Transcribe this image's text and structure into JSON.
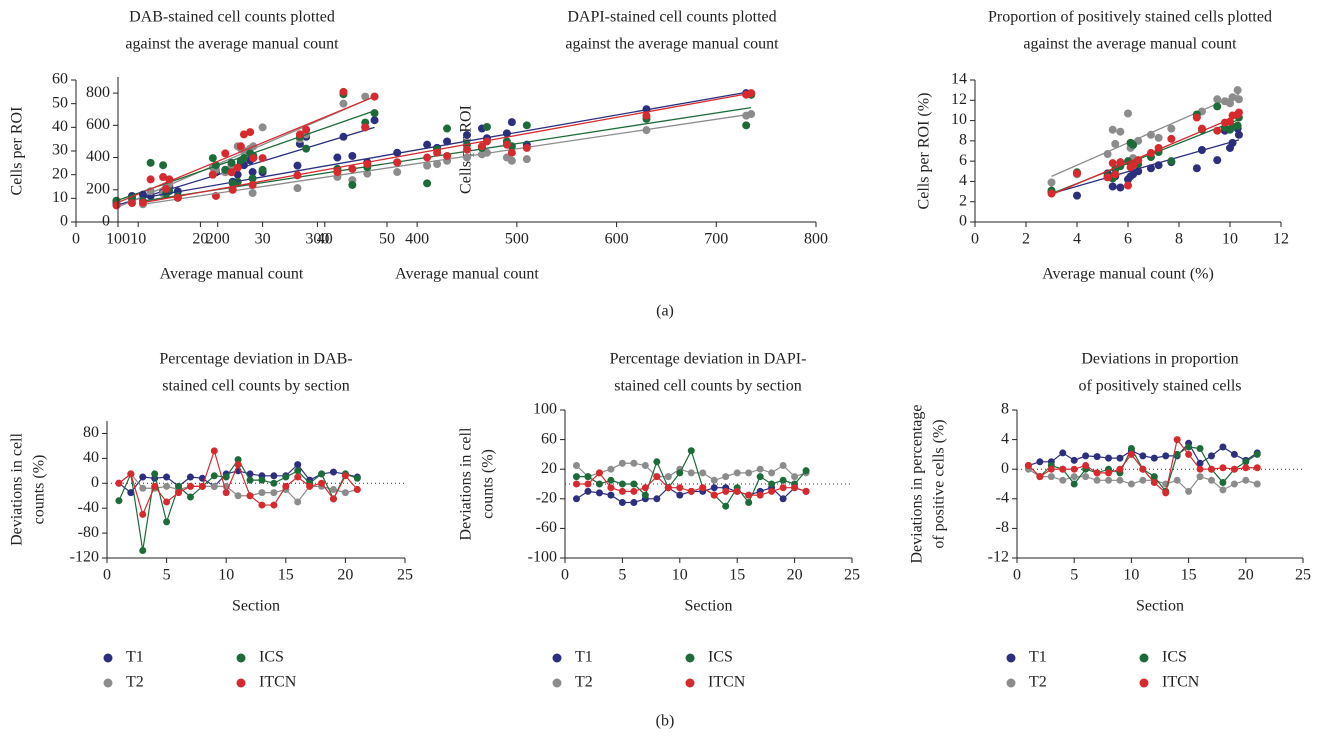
{
  "panel_labels": [
    "(a)",
    "(b)"
  ],
  "chart_data": [
    {
      "type": "scatter",
      "title": [
        "DAB-stained cell counts plotted",
        "against the average manual count"
      ],
      "xlabel": "Average manual count",
      "ylabel": [
        "Cells per ROI"
      ],
      "xlim": [
        0,
        50
      ],
      "xticks": [
        0,
        10,
        20,
        30,
        40,
        50
      ],
      "ylim": [
        0,
        60
      ],
      "yticks": [
        0,
        10,
        20,
        30,
        40,
        50,
        60
      ],
      "x": [
        6.5,
        9,
        12,
        14,
        14.5,
        15,
        22,
        22.5,
        24,
        25,
        26,
        26.5,
        27,
        28,
        28.5,
        30,
        36,
        37,
        43,
        46.5,
        48
      ],
      "trend_x": [
        6.5,
        48
      ],
      "series": [
        {
          "color": "#2b2f7e",
          "values": [
            8,
            11,
            11,
            13,
            14,
            15,
            20,
            21,
            22,
            23,
            20,
            25,
            24,
            26,
            27,
            21,
            33,
            36,
            36,
            40,
            43
          ],
          "trend": [
            7,
            40
          ]
        },
        {
          "color": "#8c8c8c",
          "values": [
            9,
            9,
            13,
            12,
            15,
            16,
            23,
            22,
            21,
            24,
            32,
            31,
            30,
            31,
            32,
            40,
            35,
            37,
            50,
            53,
            53
          ],
          "trend": [
            6,
            53
          ]
        },
        {
          "color": "#1e6b3a",
          "values": [
            9,
            10,
            25,
            24,
            12,
            13,
            27,
            24,
            22,
            25,
            17,
            26,
            27,
            29,
            28,
            22,
            36,
            31,
            54,
            42,
            46
          ],
          "trend": [
            9,
            47
          ]
        },
        {
          "color": "#d62a2f",
          "values": [
            7,
            8,
            18,
            19,
            14,
            18,
            20,
            11,
            29,
            21,
            23,
            32,
            37,
            38,
            27,
            27,
            37,
            39,
            55,
            40,
            53
          ],
          "trend": [
            8,
            53
          ]
        }
      ]
    },
    {
      "type": "scatter",
      "title": [
        "DAPI-stained cell counts plotted",
        "against the average manual count"
      ],
      "xlabel": "Average manual count",
      "ylabel": [
        "Cells per ROI"
      ],
      "xlim": [
        100,
        800
      ],
      "xticks": [
        100,
        200,
        300,
        400,
        500,
        600,
        700,
        800
      ],
      "ylim": [
        0,
        900
      ],
      "yticks": [
        0,
        200,
        400,
        600,
        800
      ],
      "x": [
        125,
        160,
        215,
        235,
        280,
        320,
        335,
        350,
        380,
        410,
        420,
        430,
        450,
        465,
        470,
        490,
        495,
        510,
        630,
        730,
        735
      ],
      "trend_x": [
        125,
        735
      ],
      "series": [
        {
          "color": "#2b2f7e",
          "values": [
            170,
            190,
            250,
            310,
            350,
            400,
            410,
            370,
            430,
            480,
            460,
            500,
            540,
            580,
            520,
            550,
            620,
            480,
            700,
            800,
            790
          ],
          "trend": [
            150,
            810
          ]
        },
        {
          "color": "#8c8c8c",
          "values": [
            110,
            150,
            200,
            180,
            210,
            280,
            260,
            300,
            310,
            350,
            360,
            380,
            400,
            420,
            430,
            400,
            380,
            390,
            570,
            660,
            670
          ],
          "trend": [
            110,
            670
          ]
        },
        {
          "color": "#1e6b3a",
          "values": [
            130,
            160,
            240,
            270,
            290,
            330,
            230,
            340,
            370,
            240,
            450,
            580,
            480,
            460,
            590,
            500,
            470,
            600,
            640,
            600,
            790
          ],
          "trend": [
            130,
            710
          ]
        },
        {
          "color": "#d62a2f",
          "values": [
            120,
            150,
            200,
            230,
            290,
            310,
            330,
            360,
            370,
            400,
            430,
            410,
            450,
            470,
            500,
            480,
            430,
            460,
            660,
            790,
            800
          ],
          "trend": [
            120,
            800
          ]
        }
      ]
    },
    {
      "type": "scatter",
      "title": [
        "Proportion of positively stained cells plotted",
        "against the average manual count"
      ],
      "xlabel": "Average manual count (%)",
      "ylabel": [
        "Cells per ROI (%)"
      ],
      "xlim": [
        0,
        12
      ],
      "xticks": [
        0,
        2,
        4,
        6,
        8,
        10,
        12
      ],
      "ylim": [
        0,
        14
      ],
      "yticks": [
        0,
        2,
        4,
        6,
        8,
        10,
        12,
        14
      ],
      "x": [
        3,
        4,
        5.2,
        5.4,
        5.5,
        5.7,
        6,
        6.1,
        6.2,
        6.4,
        6.9,
        7.2,
        7.7,
        8.7,
        8.9,
        9.5,
        9.8,
        10,
        10.1,
        10.3,
        10.35
      ],
      "trend_x": [
        3,
        10.35
      ],
      "series": [
        {
          "color": "#2b2f7e",
          "values": [
            3,
            2.6,
            4.8,
            3.5,
            4.5,
            3.4,
            4.2,
            4.5,
            4.7,
            5,
            5.3,
            5.6,
            5.9,
            5.3,
            7.1,
            6.1,
            9,
            7.3,
            7.8,
            9.2,
            8.6
          ],
          "trend": [
            2.8,
            8.1
          ]
        },
        {
          "color": "#8c8c8c",
          "values": [
            3.9,
            4.7,
            6.7,
            9.1,
            7.7,
            8.9,
            10.7,
            7.3,
            6.3,
            8,
            8.6,
            8.3,
            9.2,
            10.4,
            10.9,
            12.1,
            11.9,
            11.7,
            12.3,
            13,
            12.1
          ],
          "trend": [
            4.5,
            12.6
          ]
        },
        {
          "color": "#1e6b3a",
          "values": [
            3.1,
            4.9,
            4.5,
            4.3,
            5.2,
            5.5,
            6,
            7.8,
            7.6,
            5.7,
            6.4,
            6.9,
            6,
            10.6,
            9.1,
            11.4,
            9.3,
            9.1,
            9.4,
            9.5,
            10.3
          ],
          "trend": [
            2.8,
            10.1
          ]
        },
        {
          "color": "#d62a2f",
          "values": [
            2.8,
            4.8,
            4.4,
            5.8,
            4.7,
            5.9,
            3.6,
            5.4,
            5.6,
            6.1,
            6.8,
            7.3,
            8.2,
            10.3,
            9.2,
            9,
            9.8,
            9.9,
            10.5,
            10.6,
            10.8
          ],
          "trend": [
            2.7,
            10.5
          ]
        }
      ]
    },
    {
      "type": "line",
      "title": [
        "Percentage deviation in DAB-",
        "stained cell counts by section"
      ],
      "xlabel": "Section",
      "ylabel": [
        "Deviations in cell",
        "counts (%)"
      ],
      "xlim": [
        0,
        25
      ],
      "xticks": [
        0,
        5,
        10,
        15,
        20,
        25
      ],
      "ylim": [
        -120,
        100
      ],
      "yticks": [
        -120,
        -80,
        -40,
        0,
        40,
        80
      ],
      "hline": 0,
      "legend": true,
      "x": [
        1,
        2,
        3,
        4,
        5,
        6,
        7,
        8,
        9,
        10,
        11,
        12,
        13,
        14,
        15,
        16,
        17,
        18,
        19,
        20,
        21
      ],
      "series": [
        {
          "name": "T1",
          "color": "#2b2f7e",
          "values": [
            0,
            -15,
            10,
            8,
            10,
            -5,
            10,
            8,
            -5,
            15,
            20,
            15,
            12,
            12,
            12,
            30,
            5,
            15,
            18,
            15,
            10
          ]
        },
        {
          "name": "T2",
          "color": "#8c8c8c",
          "values": [
            0,
            15,
            -8,
            -8,
            -5,
            -10,
            -5,
            -5,
            -5,
            -5,
            -20,
            -20,
            -15,
            -15,
            -10,
            -30,
            -5,
            -5,
            -10,
            -15,
            -10
          ]
        },
        {
          "name": "ICS",
          "color": "#1e6b3a",
          "values": [
            -28,
            15,
            -108,
            15,
            -62,
            -5,
            -22,
            -5,
            12,
            10,
            38,
            5,
            5,
            0,
            10,
            20,
            0,
            15,
            -25,
            15,
            8
          ]
        },
        {
          "name": "ITCN",
          "color": "#d62a2f",
          "values": [
            0,
            15,
            -50,
            -5,
            -30,
            -15,
            -5,
            -5,
            52,
            -15,
            30,
            -20,
            -35,
            -35,
            -5,
            10,
            -5,
            0,
            -25,
            12,
            -10
          ]
        }
      ]
    },
    {
      "type": "line",
      "title": [
        "Percentage deviation in DAPI-",
        "stained cell counts by section"
      ],
      "xlabel": "Section",
      "ylabel": [
        "Deviations in cell",
        "counts (%)"
      ],
      "xlim": [
        0,
        25
      ],
      "xticks": [
        0,
        5,
        10,
        15,
        20,
        25
      ],
      "ylim": [
        -100,
        100
      ],
      "yticks": [
        -100,
        -60,
        -20,
        20,
        60,
        100
      ],
      "hline": 0,
      "legend": true,
      "x": [
        1,
        2,
        3,
        4,
        5,
        6,
        7,
        8,
        9,
        10,
        11,
        12,
        13,
        14,
        15,
        16,
        17,
        18,
        19,
        20,
        21
      ],
      "series": [
        {
          "name": "T1",
          "color": "#2b2f7e",
          "values": [
            -20,
            -10,
            -12,
            -15,
            -25,
            -25,
            -20,
            -20,
            -5,
            -15,
            -10,
            -10,
            -5,
            -5,
            -10,
            -15,
            -10,
            -5,
            -20,
            -5,
            -10
          ]
        },
        {
          "name": "T2",
          "color": "#8c8c8c",
          "values": [
            25,
            10,
            15,
            20,
            28,
            28,
            25,
            10,
            10,
            20,
            15,
            15,
            5,
            10,
            15,
            15,
            20,
            15,
            25,
            10,
            15
          ]
        },
        {
          "name": "ICS",
          "color": "#1e6b3a",
          "values": [
            10,
            10,
            0,
            5,
            0,
            0,
            -15,
            30,
            -5,
            15,
            45,
            -5,
            -15,
            -30,
            -5,
            -25,
            10,
            0,
            5,
            0,
            18
          ]
        },
        {
          "name": "ITCN",
          "color": "#d62a2f",
          "values": [
            0,
            0,
            15,
            -5,
            -10,
            -10,
            -5,
            10,
            -5,
            -5,
            -10,
            -5,
            -15,
            -10,
            -10,
            -15,
            -15,
            -10,
            -5,
            -5,
            -10
          ]
        }
      ]
    },
    {
      "type": "line",
      "title": [
        "Deviations in proportion",
        "of positively stained cells"
      ],
      "xlabel": "Section",
      "ylabel": [
        "Deviations in percentage",
        "of positive cells (%)"
      ],
      "xlim": [
        0,
        25
      ],
      "xticks": [
        0,
        5,
        10,
        15,
        20,
        25
      ],
      "ylim": [
        -12,
        8
      ],
      "yticks": [
        -12,
        -8,
        -4,
        0,
        4,
        8
      ],
      "hline": 0,
      "legend": true,
      "x": [
        1,
        2,
        3,
        4,
        5,
        6,
        7,
        8,
        9,
        10,
        11,
        12,
        13,
        14,
        15,
        16,
        17,
        18,
        19,
        20,
        21
      ],
      "series": [
        {
          "name": "T1",
          "color": "#2b2f7e",
          "values": [
            0.5,
            1,
            1,
            2.2,
            1.2,
            1.8,
            1.7,
            1.5,
            1.5,
            2.5,
            1.8,
            1.5,
            1.8,
            1.8,
            3.5,
            0.8,
            1.8,
            3,
            2,
            1.2,
            2.2
          ]
        },
        {
          "name": "T2",
          "color": "#8c8c8c",
          "values": [
            0,
            -1,
            -1,
            -1.5,
            -1,
            -1,
            -1.5,
            -1.5,
            -1.5,
            -2,
            -1.5,
            -1.5,
            -2,
            -1.5,
            -3,
            -1,
            -1.5,
            -2.8,
            -2,
            -1.5,
            -2
          ]
        },
        {
          "name": "ICS",
          "color": "#1e6b3a",
          "values": [
            0.5,
            -1,
            0.5,
            0,
            -2,
            0,
            -0.5,
            0,
            -0.5,
            2.8,
            0,
            -1,
            -3,
            2,
            3,
            2.8,
            0,
            -1.8,
            0,
            1,
            2
          ]
        },
        {
          "name": "ITCN",
          "color": "#d62a2f",
          "values": [
            0.5,
            -1,
            0,
            0,
            0,
            0.5,
            -0.5,
            -0.5,
            0,
            2,
            0,
            -1.8,
            -3.2,
            4,
            2,
            0,
            0,
            0.2,
            0,
            0.2,
            0.2
          ]
        }
      ]
    }
  ]
}
